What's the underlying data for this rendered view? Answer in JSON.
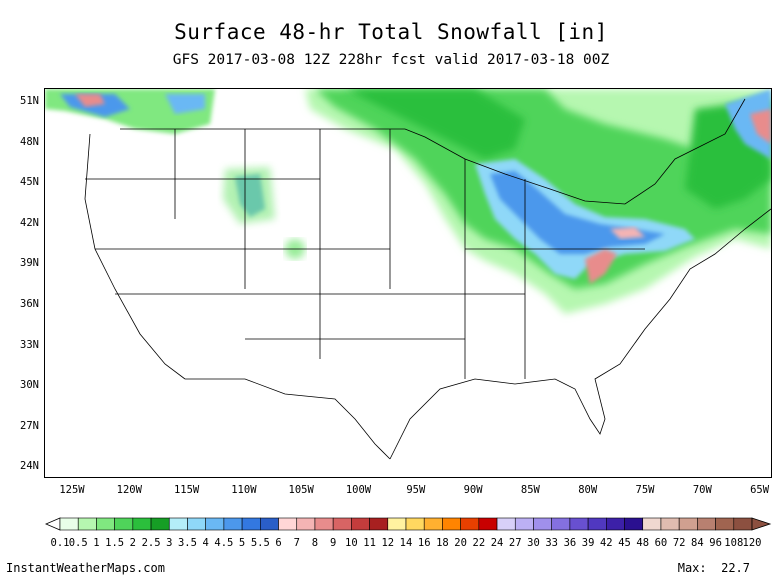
{
  "title": "Surface 48-hr Total Snowfall [in]",
  "subtitle": "GFS 2017-03-08 12Z 228hr fcst valid 2017-03-18 00Z",
  "lat_labels": [
    "51N",
    "48N",
    "45N",
    "42N",
    "39N",
    "36N",
    "33N",
    "30N",
    "27N",
    "24N"
  ],
  "lon_labels": [
    "125W",
    "120W",
    "115W",
    "110W",
    "105W",
    "100W",
    "95W",
    "90W",
    "85W",
    "80W",
    "75W",
    "70W",
    "65W"
  ],
  "colorbar": {
    "labels": [
      "0.1",
      "0.5",
      "1",
      "1.5",
      "2",
      "2.5",
      "3",
      "3.5",
      "4",
      "4.5",
      "5",
      "5.5",
      "6",
      "7",
      "8",
      "9",
      "10",
      "11",
      "12",
      "14",
      "16",
      "18",
      "20",
      "22",
      "24",
      "27",
      "30",
      "33",
      "36",
      "39",
      "42",
      "45",
      "48",
      "60",
      "72",
      "84",
      "96",
      "108",
      "120"
    ],
    "colors": [
      "#e8ffe8",
      "#b6f7b0",
      "#80e880",
      "#4fd45a",
      "#2bbf3c",
      "#169e25",
      "#b4eef8",
      "#8fd8f8",
      "#6ab8f4",
      "#4c98ec",
      "#3378e0",
      "#2a5ec8",
      "#ffd6d6",
      "#f4b4b4",
      "#e88c8c",
      "#d86464",
      "#c43c3c",
      "#a82020",
      "#fff2a0",
      "#ffd860",
      "#ffb030",
      "#ff8400",
      "#e84000",
      "#c80000",
      "#d8d0f8",
      "#bcb0f4",
      "#a090ec",
      "#8470e0",
      "#6850d0",
      "#5038c0",
      "#3c20a8",
      "#2a1090",
      "#f0d8d0",
      "#e0bcb0",
      "#d0a090",
      "#b88070",
      "#a06450",
      "#8c5040"
    ]
  },
  "footer": {
    "site": "InstantWeatherMaps.com",
    "max_label": "Max:",
    "max_value": "22.7"
  },
  "legend_colors": {
    "light_green": "#b6f7b0",
    "green": "#2bbf3c",
    "dark_green": "#169e25",
    "light_blue": "#8fd8f8",
    "blue": "#3378e0",
    "pink": "#f4b4b4",
    "red": "#c43c3c"
  }
}
